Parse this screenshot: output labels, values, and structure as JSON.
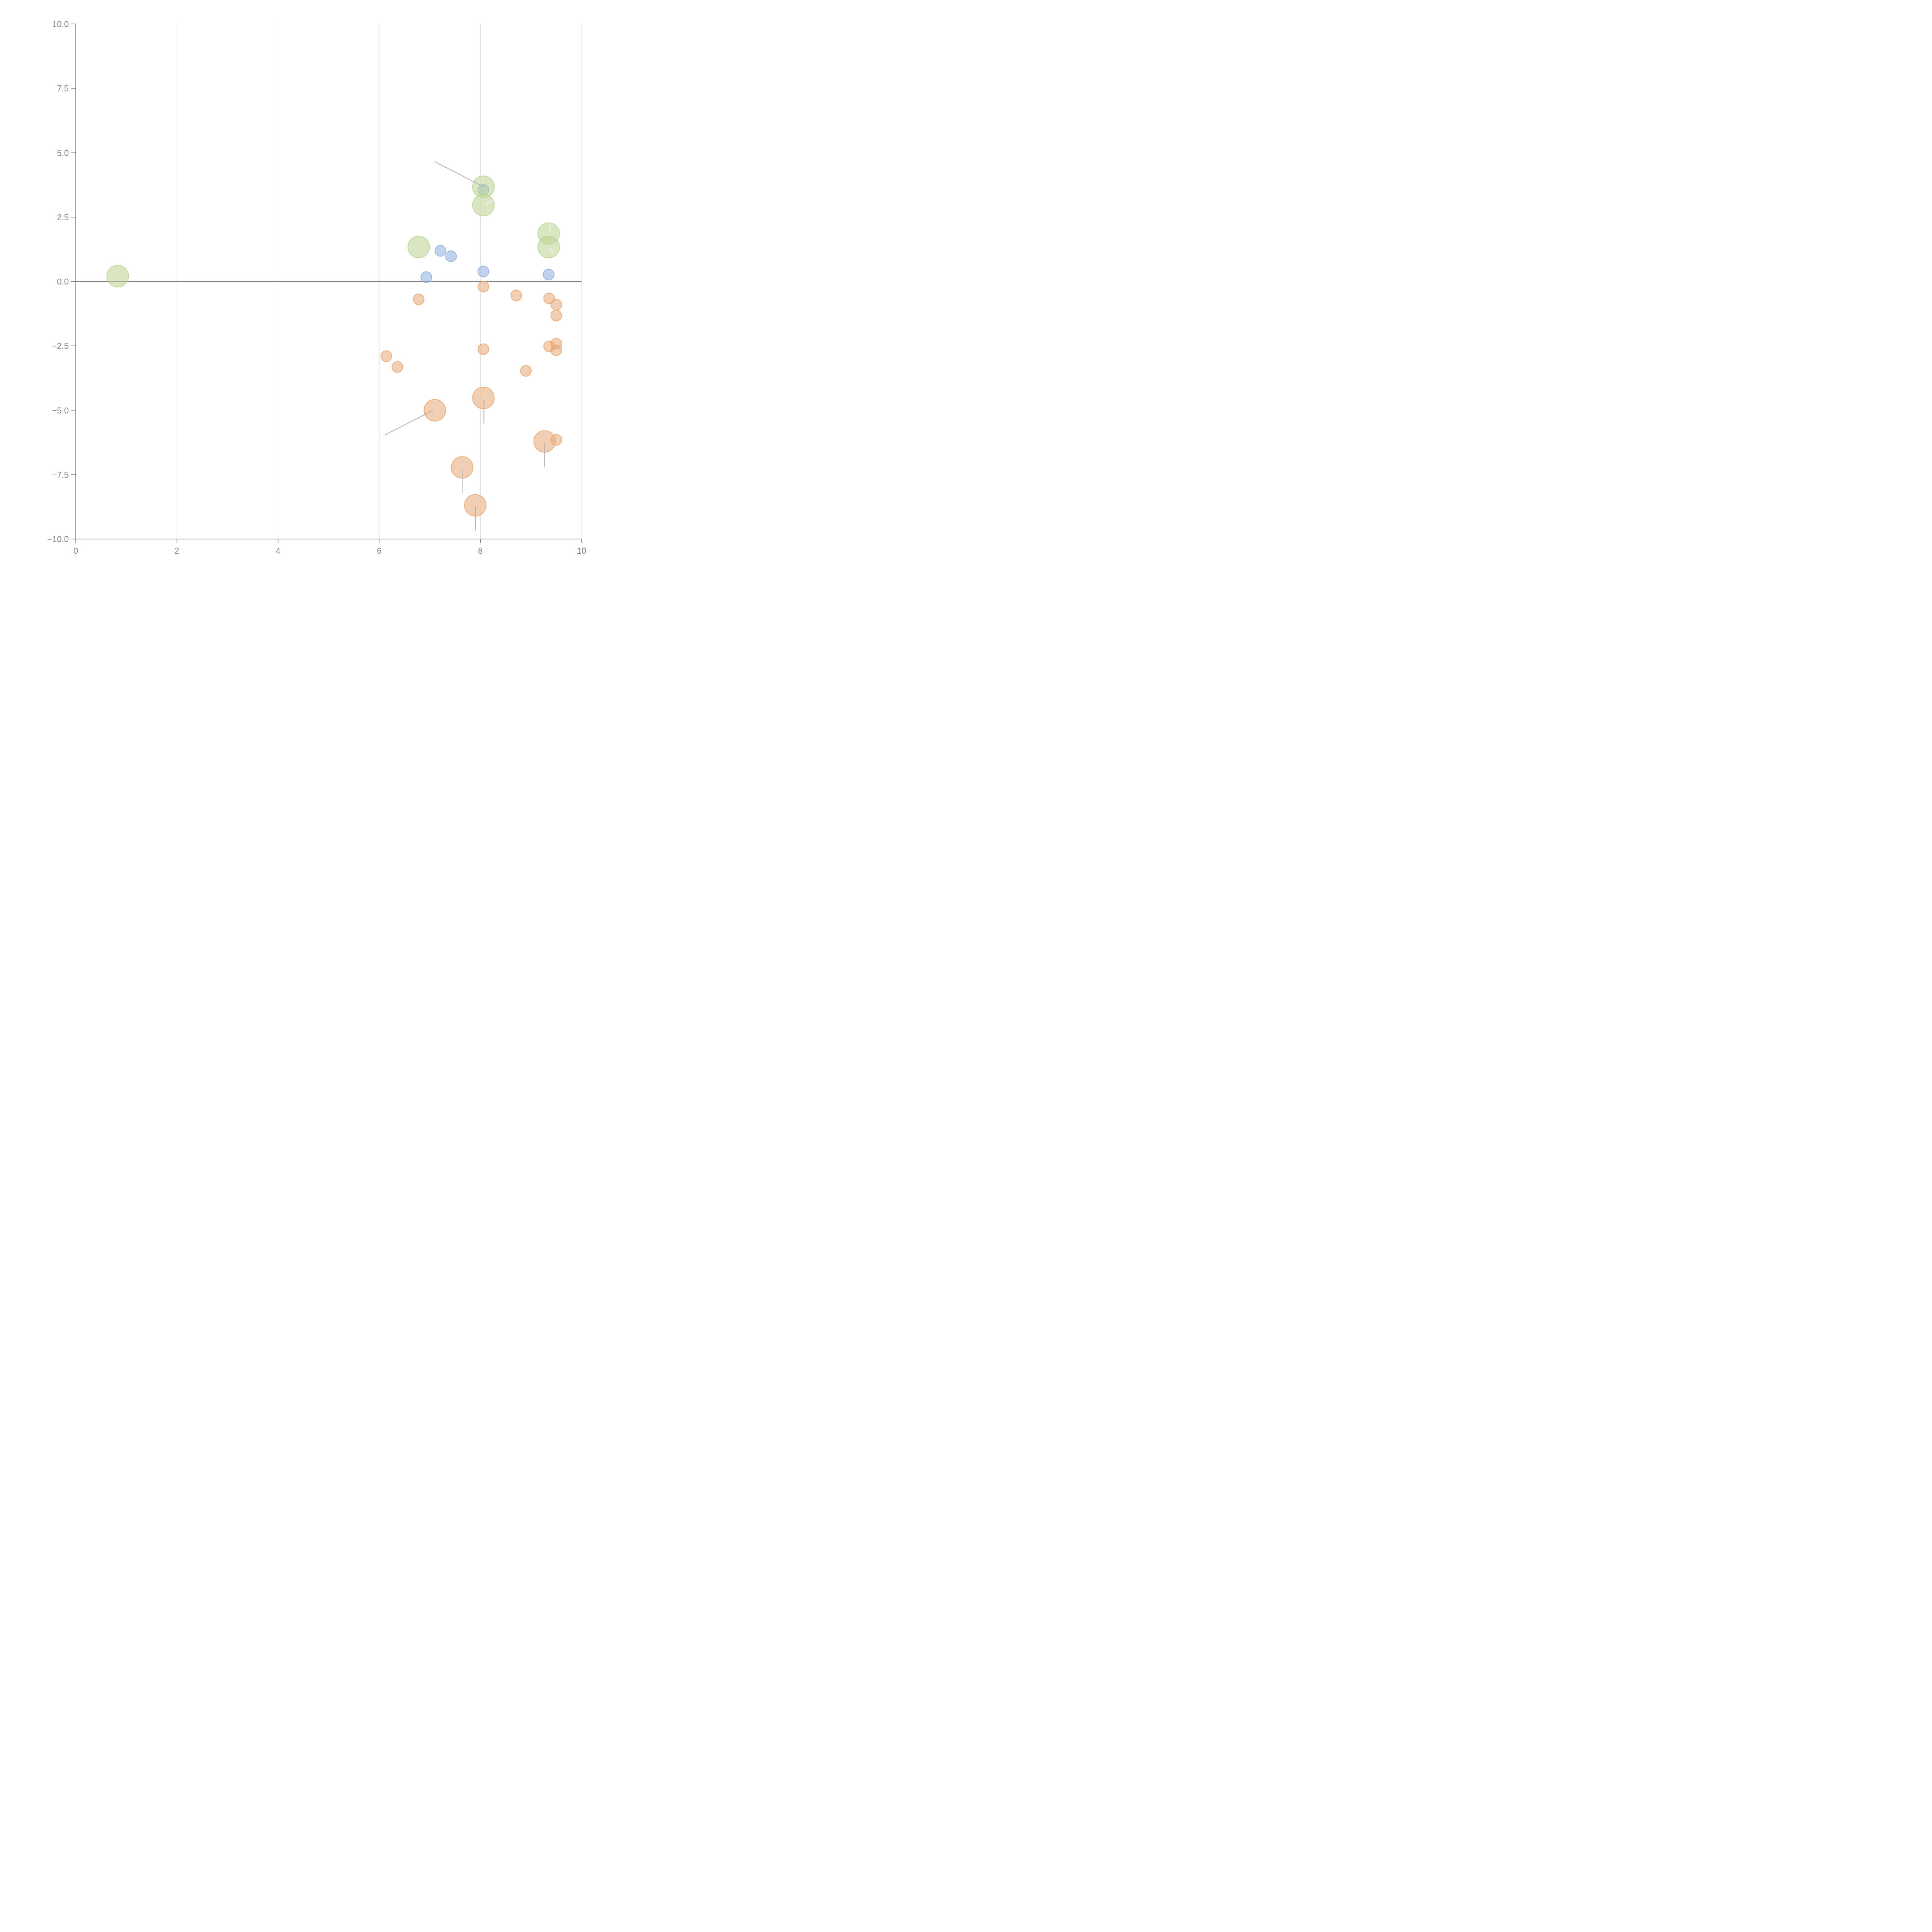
{
  "chart_data": {
    "type": "scatter",
    "title": "",
    "xlabel": "",
    "ylabel": "",
    "xlim": [
      0,
      10
    ],
    "ylim": [
      -10,
      10
    ],
    "xticks": [
      "0",
      "2",
      "4",
      "6",
      "8",
      "10"
    ],
    "xtick_values": [
      0,
      2,
      4,
      6,
      8,
      10
    ],
    "yticks": [
      "10.0",
      "7.5",
      "5.0",
      "2.5",
      "0.0",
      "−2.5",
      "−5.0",
      "−7.5",
      "−10.0"
    ],
    "ytick_values": [
      10,
      7.5,
      5,
      2.5,
      0,
      -2.5,
      -5,
      -7.5,
      -10
    ],
    "grid": "vertical",
    "reference_line": {
      "y": 0
    },
    "legend": "none",
    "series": [
      {
        "name": "blue",
        "color": "#8eaedb",
        "size": "small",
        "points": [
          {
            "x": 7.21,
            "y": 1.19
          },
          {
            "x": 7.42,
            "y": 0.98
          },
          {
            "x": 6.93,
            "y": 0.17
          },
          {
            "x": 8.06,
            "y": 0.39
          },
          {
            "x": 9.35,
            "y": 0.27
          },
          {
            "x": 8.06,
            "y": 3.56
          }
        ]
      },
      {
        "name": "green",
        "color": "#b9d48f",
        "size": "large",
        "points": [
          {
            "x": 0.83,
            "y": 0.21
          },
          {
            "x": 6.78,
            "y": 1.34
          },
          {
            "x": 8.06,
            "y": 3.68
          },
          {
            "x": 8.06,
            "y": 2.97
          },
          {
            "x": 9.35,
            "y": 1.86
          },
          {
            "x": 9.35,
            "y": 1.34
          }
        ]
      },
      {
        "name": "orange",
        "color": "#e8a872",
        "size": "small",
        "points": [
          {
            "x": 6.78,
            "y": -0.69
          },
          {
            "x": 8.06,
            "y": -0.2
          },
          {
            "x": 8.71,
            "y": -0.54
          },
          {
            "x": 9.36,
            "y": -0.66
          },
          {
            "x": 9.5,
            "y": -0.9
          },
          {
            "x": 9.5,
            "y": -1.32
          },
          {
            "x": 6.14,
            "y": -2.9
          },
          {
            "x": 6.36,
            "y": -3.32
          },
          {
            "x": 8.06,
            "y": -2.63
          },
          {
            "x": 9.36,
            "y": -2.52
          },
          {
            "x": 9.5,
            "y": -2.42
          },
          {
            "x": 9.5,
            "y": -2.67
          },
          {
            "x": 8.9,
            "y": -3.47
          },
          {
            "x": 9.5,
            "y": -6.15
          }
        ]
      },
      {
        "name": "orange-large",
        "color": "#e8a872",
        "size": "large",
        "points": [
          {
            "x": 7.1,
            "y": -5.0
          },
          {
            "x": 8.06,
            "y": -4.52
          },
          {
            "x": 9.27,
            "y": -6.21
          },
          {
            "x": 7.64,
            "y": -7.22
          },
          {
            "x": 7.9,
            "y": -8.69
          }
        ]
      }
    ],
    "annotations": [
      {
        "from": {
          "x": 7.1,
          "y": 4.65
        },
        "to": {
          "x": 8.06,
          "y": 3.68
        },
        "style": "gray"
      },
      {
        "from": {
          "x": 6.12,
          "y": -5.95
        },
        "to": {
          "x": 7.07,
          "y": -5.0
        },
        "style": "gray"
      },
      {
        "from": {
          "x": 8.07,
          "y": -4.6
        },
        "to": {
          "x": 8.07,
          "y": -5.5
        },
        "style": "gray"
      },
      {
        "from": {
          "x": 9.27,
          "y": -6.3
        },
        "to": {
          "x": 9.27,
          "y": -7.2
        },
        "style": "gray"
      },
      {
        "from": {
          "x": 7.64,
          "y": -7.3
        },
        "to": {
          "x": 7.64,
          "y": -8.2
        },
        "style": "gray"
      },
      {
        "from": {
          "x": 7.9,
          "y": -8.75
        },
        "to": {
          "x": 7.9,
          "y": -9.65
        },
        "style": "gray"
      },
      {
        "from": {
          "x": 8.11,
          "y": 3.0
        },
        "to": {
          "x": 8.26,
          "y": 3.15
        },
        "style": "light"
      },
      {
        "from": {
          "x": 9.37,
          "y": 1.92
        },
        "to": {
          "x": 9.39,
          "y": 2.3
        },
        "style": "light"
      },
      {
        "from": {
          "x": 9.38,
          "y": 1.28
        },
        "to": {
          "x": 9.44,
          "y": 1.1
        },
        "style": "light"
      }
    ]
  }
}
